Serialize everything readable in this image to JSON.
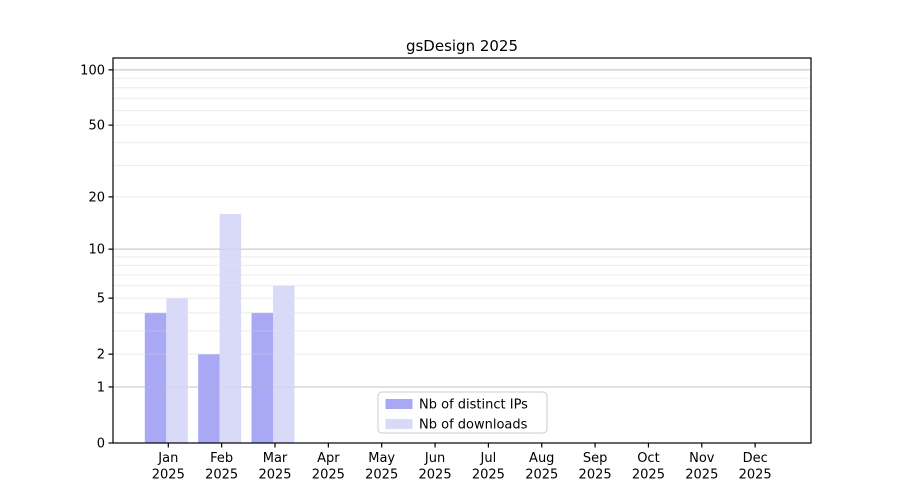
{
  "chart_data": {
    "type": "bar",
    "title": "gsDesign 2025",
    "xlabel": "",
    "ylabel": "",
    "categories": [
      "Jan 2025",
      "Feb 2025",
      "Mar 2025",
      "Apr 2025",
      "May 2025",
      "Jun 2025",
      "Jul 2025",
      "Aug 2025",
      "Sep 2025",
      "Oct 2025",
      "Nov 2025",
      "Dec 2025"
    ],
    "months": [
      "Jan",
      "Feb",
      "Mar",
      "Apr",
      "May",
      "Jun",
      "Jul",
      "Aug",
      "Sep",
      "Oct",
      "Nov",
      "Dec"
    ],
    "year_label": "2025",
    "series": [
      {
        "name": "Nb of distinct IPs",
        "color": "#a8a8f4",
        "values": [
          4,
          2,
          4,
          0,
          0,
          0,
          0,
          0,
          0,
          0,
          0,
          0
        ]
      },
      {
        "name": "Nb of downloads",
        "color": "#d9d9f8",
        "values": [
          5,
          16,
          6,
          0,
          0,
          0,
          0,
          0,
          0,
          0,
          0,
          0
        ]
      }
    ],
    "yscale": "log1p",
    "ylim": [
      0,
      116
    ],
    "ytick_labels": [
      "0",
      "1",
      "2",
      "5",
      "10",
      "20",
      "50",
      "100"
    ],
    "ytick_values": [
      0,
      1,
      2,
      5,
      10,
      20,
      50,
      100
    ],
    "grid_major_values": [
      1,
      10,
      100
    ],
    "grid_minor_values": [
      2,
      3,
      4,
      5,
      6,
      7,
      8,
      9,
      20,
      30,
      40,
      50,
      60,
      70,
      80,
      90
    ],
    "grid": "on",
    "legend_position": "bottom-center",
    "colors": {
      "grid_major": "#c3c3c3",
      "grid_minor": "#ececec",
      "axis": "#000000",
      "text": "#000000",
      "legend_border": "#cccccc",
      "legend_background": "#ffffff",
      "background": "#ffffff"
    }
  }
}
